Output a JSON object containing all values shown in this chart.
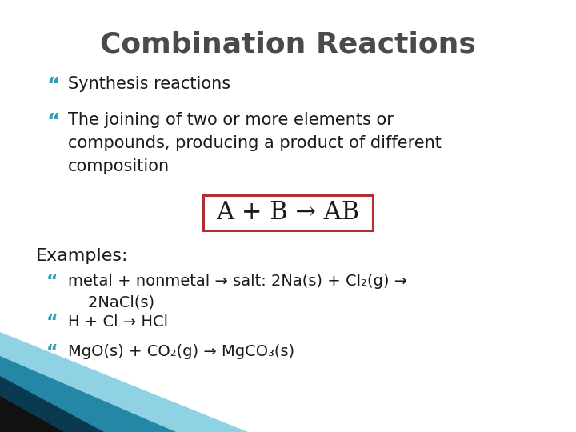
{
  "title": "Combination Reactions",
  "title_color": "#4a4a4a",
  "title_fontsize": 26,
  "background_color": "#ffffff",
  "bullet_color": "#2e9fb5",
  "bullet_char": "“",
  "bullets": [
    "Synthesis reactions",
    "The joining of two or more elements or\ncompounds, producing a product of different\ncomposition"
  ],
  "formula_text": "A + B → AB",
  "formula_box_color": "#b03030",
  "formula_fontsize": 18,
  "examples_label": "Examples:",
  "example_lines": [
    "metal + nonmetal → salt: 2Na(s) + Cl₂(g) →\n    2NaCl(s)",
    "H + Cl → HCl",
    "MgO(s) + CO₂(g) → MgCO₃(s)"
  ],
  "text_color": "#1a1a1a",
  "body_fontsize": 14,
  "bullet_fontsize": 16,
  "examples_fontsize": 15,
  "corner_teal1": "#1a7fa0",
  "corner_teal2": "#60c0d8",
  "corner_dark": "#0a3a50",
  "corner_black": "#111111"
}
